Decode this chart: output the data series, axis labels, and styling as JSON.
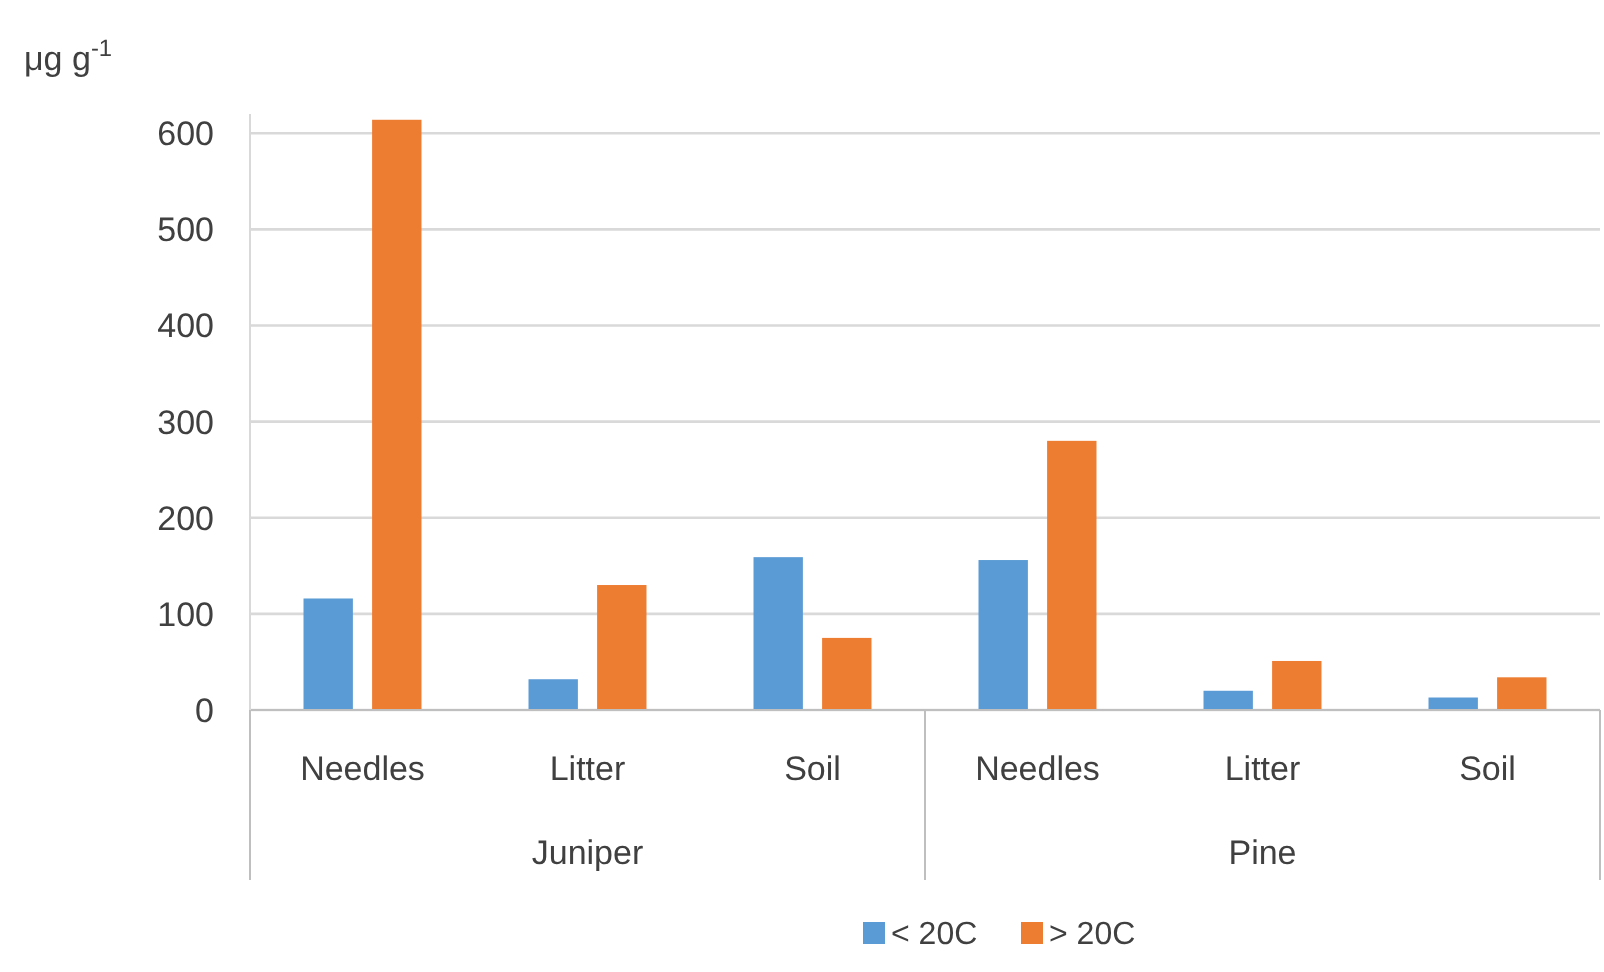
{
  "chart_data": {
    "type": "bar",
    "ylabel": "μg g$^{-1}$",
    "categories": [
      "Needles",
      "Litter",
      "Soil",
      "Needles",
      "Litter",
      "Soil"
    ],
    "series": [
      {
        "name": "< 20C",
        "color": "#5b9bd5",
        "values": [
          116,
          32,
          159,
          156,
          20,
          13
        ]
      },
      {
        "name": "> 20C",
        "color": "#ed7d31",
        "values": [
          614,
          130,
          75,
          280,
          51,
          34
        ]
      }
    ],
    "ylim": [
      0,
      620
    ],
    "yticks": [
      0,
      100,
      200,
      300,
      400,
      500,
      600
    ],
    "grid": "y",
    "legend": "bottom",
    "annotations": [
      "Juniper",
      "Pine"
    ]
  }
}
